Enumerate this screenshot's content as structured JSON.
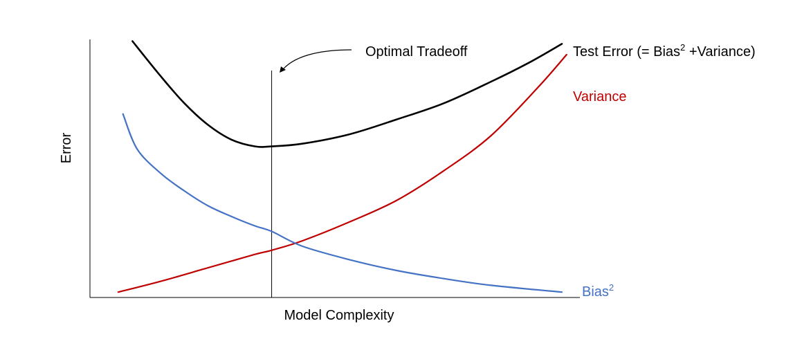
{
  "chart_data": {
    "type": "line",
    "title": "",
    "xlabel": "Model Complexity",
    "ylabel": "Error",
    "xlim": [
      0,
      100
    ],
    "ylim": [
      0,
      100
    ],
    "grid": false,
    "legend": "inline labels at line ends",
    "series": [
      {
        "name": "Test Error (= Bias² +Variance)",
        "color": "#000000",
        "x": [
          9,
          15,
          20,
          25,
          30,
          35,
          38.5,
          45,
          55,
          65,
          75,
          85,
          93,
          100
        ],
        "y": [
          95,
          82,
          72,
          64,
          58.5,
          56,
          56,
          57,
          60.5,
          66,
          72,
          80,
          87,
          94
        ]
      },
      {
        "name": "Variance",
        "color": "#c00000",
        "x": [
          6,
          15,
          25,
          35,
          38.5,
          45,
          55,
          65,
          75,
          85,
          95,
          101
        ],
        "y": [
          2,
          6,
          11,
          16,
          17.5,
          21,
          28,
          36,
          47,
          60,
          78,
          90
        ]
      },
      {
        "name": "Bias",
        "color": "#4472c4",
        "x": [
          7,
          10,
          15,
          20,
          25,
          30,
          35,
          38.5,
          45,
          55,
          65,
          75,
          85,
          100
        ],
        "y": [
          68,
          55,
          46,
          39.5,
          34,
          30,
          26.5,
          24.5,
          19,
          14,
          10,
          7,
          4.5,
          2
        ]
      }
    ],
    "annotations": [
      {
        "text": "Optimal Tradeoff",
        "x": 38.5,
        "type": "vertical-line-with-arrow"
      }
    ]
  },
  "labels": {
    "test_error_prefix": "Test Error (= Bias",
    "test_error_sup": "2",
    "test_error_suffix": " +Variance)",
    "variance": "Variance",
    "bias": "Bias",
    "bias_sup": "2",
    "optimal": "Optimal Tradeoff",
    "xlabel": "Model Complexity",
    "ylabel": "Error"
  }
}
